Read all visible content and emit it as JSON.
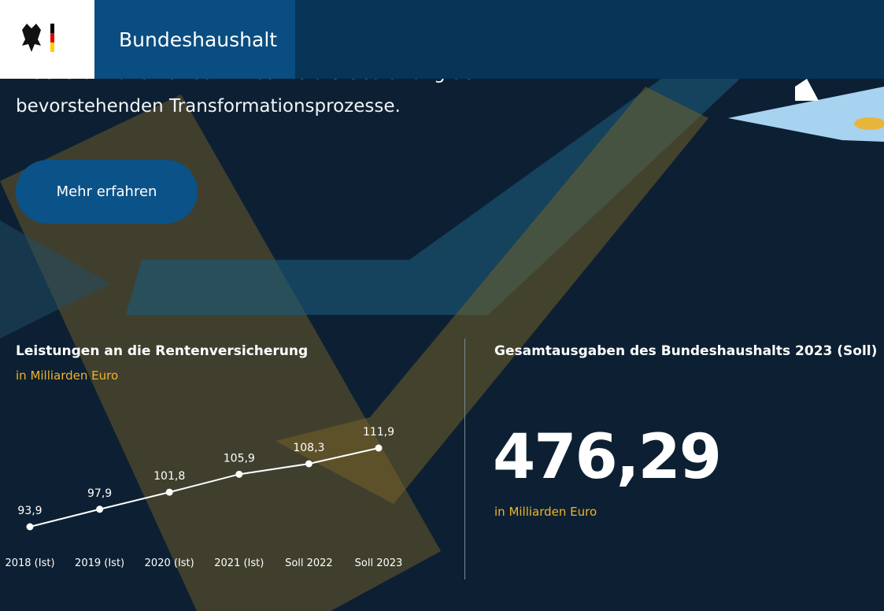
{
  "header": {
    "title": "Bundeshaushalt"
  },
  "hero": {
    "lines": [
      "Wachstum und Fortschritt sowie die Gestaltung der",
      "bevorstehenden Transformationsprozesse."
    ],
    "button": "Mehr erfahren"
  },
  "chart_data": {
    "type": "line",
    "title": "Leistungen an die Rentenversicherung",
    "subtitle": "in Milliarden Euro",
    "categories": [
      "2018 (Ist)",
      "2019 (Ist)",
      "2020 (Ist)",
      "2021 (Ist)",
      "Soll 2022",
      "Soll 2023"
    ],
    "values": [
      93.9,
      97.9,
      101.8,
      105.9,
      108.3,
      111.9
    ],
    "value_labels": [
      "93,9",
      "97,9",
      "101,8",
      "105,9",
      "108,3",
      "111,9"
    ],
    "color": "#ffffff"
  },
  "stat": {
    "title": "Gesamtausgaben des Bundeshaushalts 2023 (Soll)",
    "value": "476,29",
    "unit": "in Milliarden Euro"
  }
}
